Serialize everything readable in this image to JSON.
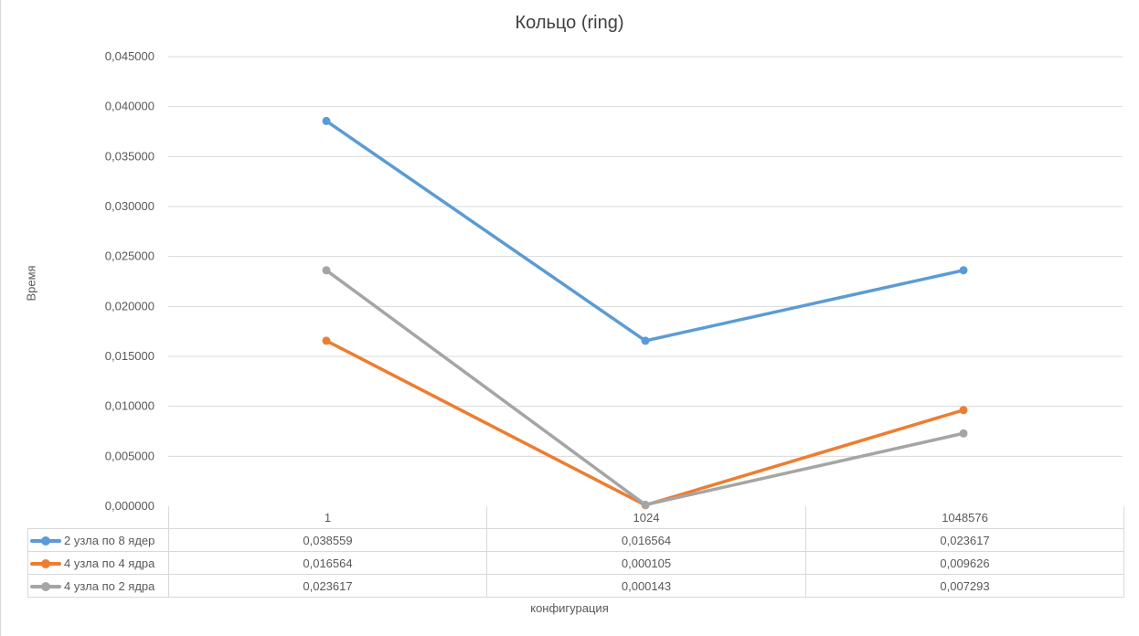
{
  "chart_data": {
    "type": "line",
    "title": "Кольцо (ring)",
    "xlabel": "конфигурация",
    "ylabel": "Время",
    "categories": [
      "1",
      "1024",
      "1048576"
    ],
    "ylim": [
      0,
      0.045
    ],
    "y_ticks": [
      "0,000000",
      "0,005000",
      "0,010000",
      "0,015000",
      "0,020000",
      "0,025000",
      "0,030000",
      "0,035000",
      "0,040000",
      "0,045000"
    ],
    "grid": true,
    "legend": "data-table",
    "series": [
      {
        "name": "2 узла по 8 ядер",
        "color": "#5B9BD5",
        "values": [
          0.038559,
          0.016564,
          0.023617
        ],
        "labels": [
          "0,038559",
          "0,016564",
          "0,023617"
        ]
      },
      {
        "name": "4 узла по 4 ядра",
        "color": "#ED7D31",
        "values": [
          0.016564,
          0.000105,
          0.009626
        ],
        "labels": [
          "0,016564",
          "0,000105",
          "0,009626"
        ]
      },
      {
        "name": "4 узла по 2 ядра",
        "color": "#A5A5A5",
        "values": [
          0.023617,
          0.000143,
          0.007293
        ],
        "labels": [
          "0,023617",
          "0,000143",
          "0,007293"
        ]
      }
    ]
  }
}
